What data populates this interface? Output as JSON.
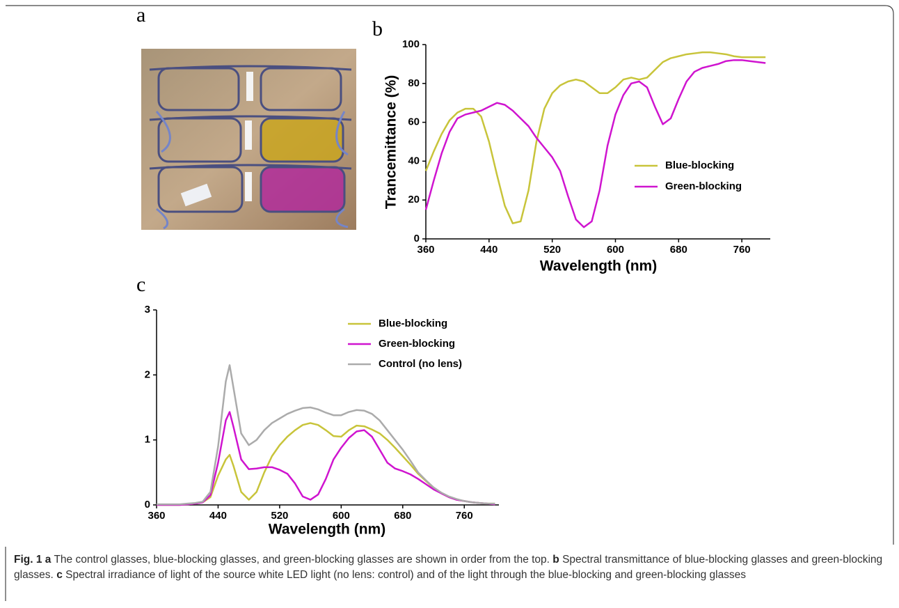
{
  "panel_a": {
    "label": "a"
  },
  "chart_data": [
    {
      "type": "line",
      "panel": "b",
      "x_label": "Wavelength (nm)",
      "y_label": "Trancemittance (%)",
      "x": [
        360,
        370,
        380,
        390,
        400,
        410,
        420,
        430,
        440,
        450,
        460,
        470,
        480,
        490,
        500,
        510,
        520,
        530,
        540,
        550,
        560,
        570,
        580,
        590,
        600,
        610,
        620,
        630,
        640,
        650,
        660,
        670,
        680,
        690,
        700,
        710,
        720,
        730,
        740,
        750,
        760,
        770,
        780,
        790
      ],
      "series": [
        {
          "name": "Blue-blocking",
          "color": "#c8c43a",
          "values": [
            35,
            45,
            54,
            61,
            65,
            67,
            67,
            63,
            50,
            33,
            17,
            8,
            9,
            25,
            50,
            67,
            75,
            79,
            81,
            82,
            81,
            78,
            75,
            75,
            78,
            82,
            83,
            82,
            83,
            87,
            91,
            93,
            94,
            95,
            95.5,
            96,
            96,
            95.5,
            95,
            94,
            93.5,
            93.5,
            93.5,
            93.5
          ]
        },
        {
          "name": "Green-blocking",
          "color": "#cf14cf",
          "values": [
            15,
            30,
            44,
            55,
            62,
            64,
            65,
            66,
            68,
            70,
            69,
            66,
            62,
            58,
            52,
            47,
            42,
            35,
            22,
            10,
            6,
            9,
            25,
            48,
            64,
            74,
            80,
            81,
            78,
            68,
            59,
            62,
            72,
            81,
            86,
            88,
            89,
            90,
            91.5,
            92,
            92,
            91.5,
            91,
            90.5
          ]
        }
      ],
      "xlim": [
        360,
        796
      ],
      "ylim": [
        0,
        100
      ],
      "xticks": [
        360,
        440,
        520,
        600,
        680,
        760
      ],
      "yticks": [
        0,
        20,
        40,
        60,
        80,
        100
      ]
    },
    {
      "type": "line",
      "panel": "c",
      "x_label": "Wavelength (nm)",
      "x": [
        360,
        370,
        380,
        390,
        400,
        410,
        420,
        430,
        440,
        450,
        455,
        460,
        470,
        480,
        490,
        500,
        510,
        520,
        530,
        540,
        550,
        560,
        570,
        580,
        590,
        600,
        610,
        620,
        630,
        640,
        650,
        660,
        670,
        680,
        690,
        700,
        710,
        720,
        730,
        740,
        750,
        760,
        770,
        780,
        790,
        800
      ],
      "series": [
        {
          "name": "Blue-blocking",
          "color": "#c8c43a",
          "values": [
            0,
            0,
            0,
            0,
            0.01,
            0.02,
            0.04,
            0.12,
            0.45,
            0.7,
            0.77,
            0.6,
            0.2,
            0.08,
            0.2,
            0.5,
            0.75,
            0.92,
            1.05,
            1.15,
            1.23,
            1.26,
            1.23,
            1.15,
            1.06,
            1.05,
            1.15,
            1.22,
            1.21,
            1.16,
            1.1,
            1.0,
            0.88,
            0.75,
            0.62,
            0.48,
            0.37,
            0.26,
            0.18,
            0.12,
            0.08,
            0.06,
            0.04,
            0.03,
            0.02,
            0.02
          ]
        },
        {
          "name": "Green-blocking",
          "color": "#cf14cf",
          "values": [
            0,
            0,
            0,
            0,
            0.01,
            0.02,
            0.04,
            0.15,
            0.65,
            1.3,
            1.43,
            1.2,
            0.7,
            0.55,
            0.56,
            0.58,
            0.58,
            0.54,
            0.48,
            0.33,
            0.13,
            0.08,
            0.16,
            0.4,
            0.7,
            0.88,
            1.03,
            1.13,
            1.15,
            1.05,
            0.85,
            0.65,
            0.56,
            0.52,
            0.47,
            0.4,
            0.32,
            0.24,
            0.18,
            0.12,
            0.08,
            0.06,
            0.04,
            0.03,
            0.02,
            0.01
          ]
        },
        {
          "name": "Control (no lens)",
          "color": "#ababab",
          "values": [
            0.01,
            0.01,
            0.01,
            0.01,
            0.02,
            0.03,
            0.05,
            0.2,
            0.9,
            1.9,
            2.15,
            1.8,
            1.1,
            0.92,
            1.0,
            1.15,
            1.26,
            1.33,
            1.4,
            1.45,
            1.49,
            1.5,
            1.47,
            1.42,
            1.38,
            1.38,
            1.43,
            1.46,
            1.45,
            1.4,
            1.3,
            1.15,
            1.0,
            0.85,
            0.68,
            0.5,
            0.38,
            0.27,
            0.19,
            0.13,
            0.09,
            0.06,
            0.04,
            0.03,
            0.02,
            0.02
          ]
        }
      ],
      "xlim": [
        360,
        805
      ],
      "ylim": [
        0,
        3
      ],
      "xticks": [
        360,
        440,
        520,
        600,
        680,
        760
      ],
      "yticks": [
        0,
        1,
        2,
        3
      ]
    }
  ],
  "caption": {
    "label": "Fig. 1",
    "parts": [
      {
        "key": "a",
        "text": "The control glasses, blue-blocking glasses, and green-blocking glasses are shown in order from the top."
      },
      {
        "key": "b",
        "text": "Spectral transmittance of blue-blocking glasses and green-blocking glasses."
      },
      {
        "key": "c",
        "text": "Spectral irradiance of light of the source white LED light (no lens: control) and of the light through the blue-blocking and green-blocking glasses"
      }
    ]
  }
}
